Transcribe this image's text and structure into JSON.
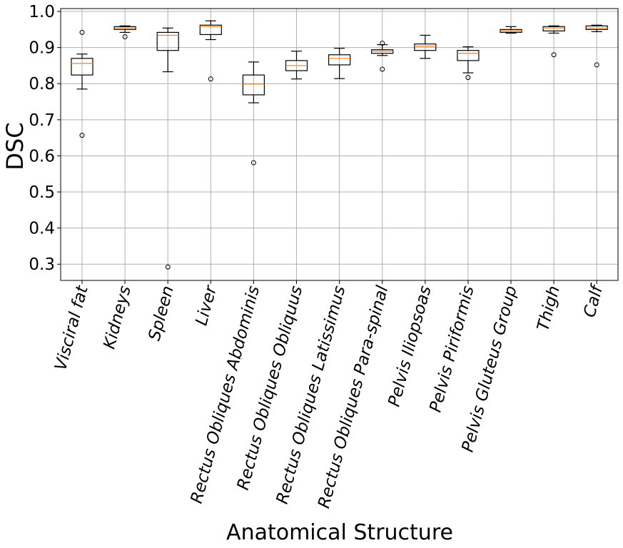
{
  "chart_data": {
    "type": "boxplot",
    "title": "",
    "xlabel": "Anatomical Structure",
    "ylabel": "DSC",
    "ylim": [
      0.255,
      1.008
    ],
    "yticks": [
      "0.3",
      "0.4",
      "0.5",
      "0.6",
      "0.7",
      "0.8",
      "0.9",
      "1.0"
    ],
    "grid": true,
    "colors": {
      "box": "#000000",
      "median": "#ff7f0e",
      "grid": "#b0b0b0"
    },
    "categories": [
      "Visciral fat",
      "Kidneys",
      "Spleen",
      "Liver",
      "Rectus Obliques Abdominis",
      "Rectus Obliques Obliquus",
      "Rectus Obliques Latissimus",
      "Rectus Obliques Para-spinal",
      "Pelvis Iliopsoas",
      "Pelvis Piriformis",
      "Pelvis Gluteus Group",
      "Thigh",
      "Calf"
    ],
    "boxes": [
      {
        "whislo": 0.785,
        "q1": 0.824,
        "med": 0.856,
        "q3": 0.87,
        "whishi": 0.882,
        "fliers": [
          0.942,
          0.657
        ]
      },
      {
        "whislo": 0.942,
        "q1": 0.95,
        "med": 0.954,
        "q3": 0.958,
        "whishi": 0.96,
        "fliers": [
          0.93
        ]
      },
      {
        "whislo": 0.833,
        "q1": 0.892,
        "med": 0.934,
        "q3": 0.942,
        "whishi": 0.954,
        "fliers": [
          0.292
        ]
      },
      {
        "whislo": 0.922,
        "q1": 0.936,
        "med": 0.958,
        "q3": 0.962,
        "whishi": 0.974,
        "fliers": [
          0.813
        ]
      },
      {
        "whislo": 0.747,
        "q1": 0.769,
        "med": 0.799,
        "q3": 0.824,
        "whishi": 0.86,
        "fliers": [
          0.581
        ]
      },
      {
        "whislo": 0.813,
        "q1": 0.836,
        "med": 0.85,
        "q3": 0.864,
        "whishi": 0.89,
        "fliers": []
      },
      {
        "whislo": 0.814,
        "q1": 0.852,
        "med": 0.87,
        "q3": 0.88,
        "whishi": 0.898,
        "fliers": []
      },
      {
        "whislo": 0.878,
        "q1": 0.884,
        "med": 0.89,
        "q3": 0.894,
        "whishi": 0.908,
        "fliers": [
          0.912,
          0.84
        ]
      },
      {
        "whislo": 0.87,
        "q1": 0.892,
        "med": 0.904,
        "q3": 0.91,
        "whishi": 0.934,
        "fliers": []
      },
      {
        "whislo": 0.83,
        "q1": 0.864,
        "med": 0.884,
        "q3": 0.892,
        "whishi": 0.902,
        "fliers": [
          0.817
        ]
      },
      {
        "whislo": 0.94,
        "q1": 0.942,
        "med": 0.946,
        "q3": 0.95,
        "whishi": 0.958,
        "fliers": []
      },
      {
        "whislo": 0.94,
        "q1": 0.946,
        "med": 0.954,
        "q3": 0.958,
        "whishi": 0.96,
        "fliers": [
          0.88
        ]
      },
      {
        "whislo": 0.944,
        "q1": 0.95,
        "med": 0.954,
        "q3": 0.96,
        "whishi": 0.962,
        "fliers": [
          0.852
        ]
      }
    ]
  }
}
